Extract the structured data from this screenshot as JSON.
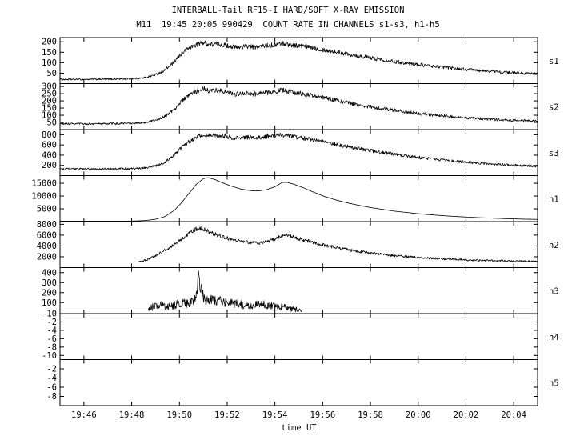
{
  "chart_data": {
    "type": "line",
    "title": "INTERBALL-Tail RF15-I HARD/SOFT X-RAY EMISSION",
    "subtitle": "M11  19:45 20:05 990429  COUNT RATE IN CHANNELS s1-s3, h1-h5",
    "xlabel": "time UT",
    "x_range": [
      0,
      20
    ],
    "x_ticks": [
      {
        "t": 1,
        "label": "19:46"
      },
      {
        "t": 3,
        "label": "19:48"
      },
      {
        "t": 5,
        "label": "19:50"
      },
      {
        "t": 7,
        "label": "19:52"
      },
      {
        "t": 9,
        "label": "19:54"
      },
      {
        "t": 11,
        "label": "19:56"
      },
      {
        "t": 13,
        "label": "19:58"
      },
      {
        "t": 15,
        "label": "20:00"
      },
      {
        "t": 17,
        "label": "20:02"
      },
      {
        "t": 19,
        "label": "20:04"
      }
    ],
    "grid": false,
    "legend": "none",
    "line_color": "#000000",
    "background": "#ffffff",
    "panels": [
      {
        "name": "s1",
        "ylim": [
          0,
          220
        ],
        "yticks": [
          50,
          100,
          150,
          200
        ],
        "noise": 12,
        "points": [
          [
            0,
            20
          ],
          [
            1,
            20
          ],
          [
            2,
            21
          ],
          [
            3,
            23
          ],
          [
            3.5,
            27
          ],
          [
            4,
            42
          ],
          [
            4.4,
            65
          ],
          [
            4.8,
            105
          ],
          [
            5.1,
            145
          ],
          [
            5.4,
            170
          ],
          [
            5.7,
            186
          ],
          [
            6,
            196
          ],
          [
            6.3,
            186
          ],
          [
            6.6,
            191
          ],
          [
            7,
            181
          ],
          [
            7.4,
            173
          ],
          [
            7.8,
            179
          ],
          [
            8.2,
            173
          ],
          [
            8.6,
            181
          ],
          [
            9,
            186
          ],
          [
            9.3,
            193
          ],
          [
            9.6,
            186
          ],
          [
            10,
            181
          ],
          [
            10.5,
            173
          ],
          [
            11,
            163
          ],
          [
            11.5,
            153
          ],
          [
            12,
            143
          ],
          [
            12.5,
            133
          ],
          [
            13,
            123
          ],
          [
            13.5,
            114
          ],
          [
            14,
            106
          ],
          [
            14.5,
            98
          ],
          [
            15,
            91
          ],
          [
            15.5,
            85
          ],
          [
            16,
            79
          ],
          [
            16.5,
            73
          ],
          [
            17,
            68
          ],
          [
            17.5,
            63
          ],
          [
            18,
            59
          ],
          [
            18.5,
            55
          ],
          [
            19,
            52
          ],
          [
            19.5,
            49
          ],
          [
            20,
            47
          ]
        ]
      },
      {
        "name": "s2",
        "ylim": [
          0,
          320
        ],
        "yticks": [
          50,
          100,
          150,
          200,
          250,
          300
        ],
        "noise": 18,
        "points": [
          [
            0,
            40
          ],
          [
            1,
            40
          ],
          [
            2,
            41
          ],
          [
            3,
            43
          ],
          [
            3.5,
            49
          ],
          [
            4,
            64
          ],
          [
            4.4,
            92
          ],
          [
            4.8,
            143
          ],
          [
            5.1,
            198
          ],
          [
            5.4,
            237
          ],
          [
            5.7,
            264
          ],
          [
            6,
            287
          ],
          [
            6.3,
            267
          ],
          [
            6.6,
            274
          ],
          [
            7,
            259
          ],
          [
            7.4,
            246
          ],
          [
            7.8,
            253
          ],
          [
            8.2,
            246
          ],
          [
            8.6,
            256
          ],
          [
            9,
            264
          ],
          [
            9.3,
            274
          ],
          [
            9.6,
            263
          ],
          [
            10,
            253
          ],
          [
            10.5,
            239
          ],
          [
            11,
            223
          ],
          [
            11.5,
            206
          ],
          [
            12,
            189
          ],
          [
            12.5,
            173
          ],
          [
            13,
            159
          ],
          [
            13.5,
            146
          ],
          [
            14,
            134
          ],
          [
            14.5,
            123
          ],
          [
            15,
            113
          ],
          [
            15.5,
            104
          ],
          [
            16,
            96
          ],
          [
            16.5,
            89
          ],
          [
            17,
            83
          ],
          [
            17.5,
            77
          ],
          [
            18,
            72
          ],
          [
            18.5,
            68
          ],
          [
            19,
            64
          ],
          [
            19.5,
            61
          ],
          [
            20,
            58
          ]
        ]
      },
      {
        "name": "s3",
        "ylim": [
          0,
          900
        ],
        "yticks": [
          200,
          400,
          600,
          800
        ],
        "noise": 45,
        "points": [
          [
            0,
            130
          ],
          [
            1,
            130
          ],
          [
            2,
            132
          ],
          [
            3,
            138
          ],
          [
            3.5,
            152
          ],
          [
            4,
            188
          ],
          [
            4.4,
            265
          ],
          [
            4.8,
            405
          ],
          [
            5.1,
            555
          ],
          [
            5.4,
            665
          ],
          [
            5.7,
            745
          ],
          [
            6,
            805
          ],
          [
            6.3,
            772
          ],
          [
            6.6,
            792
          ],
          [
            7,
            762
          ],
          [
            7.4,
            732
          ],
          [
            7.8,
            752
          ],
          [
            8.2,
            732
          ],
          [
            8.6,
            762
          ],
          [
            9,
            782
          ],
          [
            9.3,
            802
          ],
          [
            9.6,
            772
          ],
          [
            10,
            747
          ],
          [
            10.5,
            707
          ],
          [
            11,
            662
          ],
          [
            11.5,
            617
          ],
          [
            12,
            572
          ],
          [
            12.5,
            530
          ],
          [
            13,
            490
          ],
          [
            13.5,
            452
          ],
          [
            14,
            417
          ],
          [
            14.5,
            385
          ],
          [
            15,
            356
          ],
          [
            15.5,
            329
          ],
          [
            16,
            305
          ],
          [
            16.5,
            283
          ],
          [
            17,
            263
          ],
          [
            17.5,
            245
          ],
          [
            18,
            229
          ],
          [
            18.5,
            215
          ],
          [
            19,
            202
          ],
          [
            19.5,
            192
          ],
          [
            20,
            184
          ]
        ]
      },
      {
        "name": "h1",
        "ylim": [
          0,
          18000
        ],
        "yticks": [
          5000,
          10000,
          15000
        ],
        "noise": 50,
        "points": [
          [
            0,
            150
          ],
          [
            1,
            150
          ],
          [
            2,
            160
          ],
          [
            2.8,
            180
          ],
          [
            3.2,
            250
          ],
          [
            3.6,
            450
          ],
          [
            4,
            900
          ],
          [
            4.4,
            2000
          ],
          [
            4.8,
            4500
          ],
          [
            5.1,
            7500
          ],
          [
            5.4,
            11000
          ],
          [
            5.7,
            14500
          ],
          [
            6,
            16800
          ],
          [
            6.2,
            17200
          ],
          [
            6.5,
            16400
          ],
          [
            6.8,
            15200
          ],
          [
            7.2,
            13800
          ],
          [
            7.6,
            12700
          ],
          [
            8,
            12100
          ],
          [
            8.3,
            12000
          ],
          [
            8.6,
            12400
          ],
          [
            9,
            13600
          ],
          [
            9.3,
            15300
          ],
          [
            9.5,
            15400
          ],
          [
            9.8,
            14600
          ],
          [
            10.2,
            13200
          ],
          [
            10.6,
            11600
          ],
          [
            11,
            10100
          ],
          [
            11.5,
            8600
          ],
          [
            12,
            7400
          ],
          [
            12.5,
            6400
          ],
          [
            13,
            5500
          ],
          [
            13.5,
            4800
          ],
          [
            14,
            4100
          ],
          [
            14.5,
            3600
          ],
          [
            15,
            3100
          ],
          [
            15.5,
            2700
          ],
          [
            16,
            2350
          ],
          [
            16.5,
            2050
          ],
          [
            17,
            1800
          ],
          [
            17.5,
            1570
          ],
          [
            18,
            1380
          ],
          [
            18.5,
            1210
          ],
          [
            19,
            1070
          ],
          [
            19.5,
            950
          ],
          [
            20,
            850
          ]
        ]
      },
      {
        "name": "h2",
        "ylim": [
          0,
          8500
        ],
        "yticks": [
          2000,
          4000,
          6000,
          8000
        ],
        "noise": 400,
        "points": [
          [
            3.3,
            1100
          ],
          [
            3.6,
            1400
          ],
          [
            4,
            2200
          ],
          [
            4.4,
            3200
          ],
          [
            4.8,
            4300
          ],
          [
            5.1,
            5300
          ],
          [
            5.4,
            6300
          ],
          [
            5.7,
            7100
          ],
          [
            5.9,
            7300
          ],
          [
            6.1,
            6900
          ],
          [
            6.4,
            6300
          ],
          [
            6.8,
            5700
          ],
          [
            7.2,
            5200
          ],
          [
            7.6,
            4850
          ],
          [
            8,
            4600
          ],
          [
            8.3,
            4550
          ],
          [
            8.6,
            4750
          ],
          [
            9,
            5300
          ],
          [
            9.3,
            5900
          ],
          [
            9.5,
            5950
          ],
          [
            9.8,
            5600
          ],
          [
            10.2,
            5100
          ],
          [
            10.6,
            4650
          ],
          [
            11,
            4200
          ],
          [
            11.5,
            3750
          ],
          [
            12,
            3350
          ],
          [
            12.5,
            3000
          ],
          [
            13,
            2700
          ],
          [
            13.5,
            2450
          ],
          [
            14,
            2230
          ],
          [
            14.5,
            2040
          ],
          [
            15,
            1880
          ],
          [
            15.5,
            1740
          ],
          [
            16,
            1620
          ],
          [
            16.5,
            1520
          ],
          [
            17,
            1430
          ],
          [
            17.5,
            1360
          ],
          [
            18,
            1300
          ],
          [
            18.5,
            1250
          ],
          [
            19,
            1210
          ],
          [
            19.5,
            1180
          ],
          [
            20,
            1150
          ]
        ]
      },
      {
        "name": "h3",
        "ylim": [
          -10,
          450
        ],
        "yticks": [
          100,
          200,
          300,
          400,
          -10
        ],
        "noise": 90,
        "points": [
          [
            3.7,
            30
          ],
          [
            3.9,
            60
          ],
          [
            4.1,
            75
          ],
          [
            4.3,
            70
          ],
          [
            4.5,
            55
          ],
          [
            4.7,
            65
          ],
          [
            4.9,
            85
          ],
          [
            5.1,
            95
          ],
          [
            5.3,
            90
          ],
          [
            5.5,
            110
          ],
          [
            5.7,
            150
          ],
          [
            5.8,
            380
          ],
          [
            5.9,
            250
          ],
          [
            6,
            160
          ],
          [
            6.1,
            120
          ],
          [
            6.3,
            130
          ],
          [
            6.5,
            120
          ],
          [
            6.7,
            115
          ],
          [
            6.9,
            105
          ],
          [
            7.1,
            100
          ],
          [
            7.3,
            95
          ],
          [
            7.5,
            85
          ],
          [
            7.7,
            75
          ],
          [
            7.9,
            65
          ],
          [
            8.1,
            70
          ],
          [
            8.3,
            80
          ],
          [
            8.5,
            85
          ],
          [
            8.7,
            75
          ],
          [
            8.9,
            65
          ],
          [
            9.1,
            60
          ],
          [
            9.3,
            55
          ],
          [
            9.5,
            50
          ],
          [
            9.7,
            40
          ],
          [
            9.9,
            30
          ],
          [
            10.1,
            20
          ]
        ]
      },
      {
        "name": "h4",
        "ylim": [
          -11,
          0
        ],
        "yticks": [
          -2,
          -4,
          -6,
          -8,
          -10
        ],
        "noise": 0,
        "points": []
      },
      {
        "name": "h5",
        "ylim": [
          -10,
          0
        ],
        "yticks": [
          -2,
          -4,
          -6,
          -8
        ],
        "noise": 0,
        "points": []
      }
    ]
  }
}
